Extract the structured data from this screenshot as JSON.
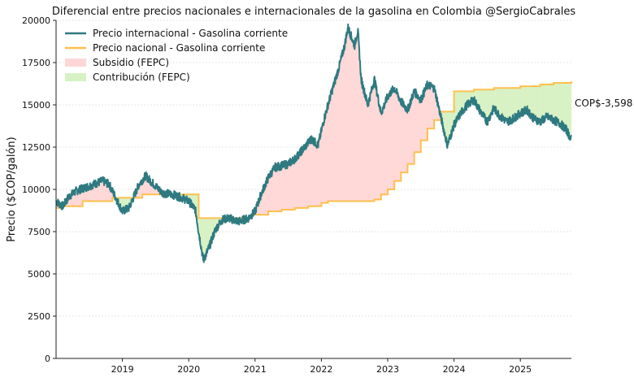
{
  "chart_data": {
    "type": "line",
    "title": "Diferencial entre precios nacionales e internacionales de la gasolina en Colombia @SergioCabrales",
    "xlabel": "",
    "ylabel": "Precio ($COP/galón)",
    "xlim": [
      2018.0,
      2025.77
    ],
    "ylim": [
      0,
      20000
    ],
    "xticks": [
      2019,
      2020,
      2021,
      2022,
      2023,
      2024,
      2025
    ],
    "xtick_labels": [
      "2019",
      "2020",
      "2021",
      "2022",
      "2023",
      "2024",
      "2025"
    ],
    "yticks": [
      0,
      2500,
      5000,
      7500,
      10000,
      12500,
      15000,
      17500,
      20000
    ],
    "ytick_labels": [
      "0",
      "2500",
      "5000",
      "7500",
      "10000",
      "12500",
      "15000",
      "17500",
      "20000"
    ],
    "grid": "horizontal dashed",
    "legend_position": "top-left",
    "legend": [
      "Precio internacional - Gasolina corriente",
      "Precio nacional - Gasolina corriente",
      "Subsidio (FEPC)",
      "Contribución (FEPC)"
    ],
    "colors": {
      "internacional": "#2e7a80",
      "nacional": "#ffc04d",
      "subsidio": "#ffd6d6",
      "contribucion": "#d6f2c4"
    },
    "annotation": "COP$-3,598",
    "series": [
      {
        "name": "Precio internacional - Gasolina corriente",
        "x": [
          2018.0,
          2018.1,
          2018.2,
          2018.3,
          2018.5,
          2018.7,
          2018.8,
          2018.9,
          2019.0,
          2019.1,
          2019.25,
          2019.35,
          2019.5,
          2019.6,
          2019.75,
          2019.9,
          2020.0,
          2020.1,
          2020.15,
          2020.22,
          2020.3,
          2020.4,
          2020.5,
          2020.6,
          2020.75,
          2020.9,
          2021.0,
          2021.1,
          2021.2,
          2021.3,
          2021.5,
          2021.6,
          2021.75,
          2021.85,
          2021.95,
          2022.05,
          2022.15,
          2022.25,
          2022.35,
          2022.4,
          2022.5,
          2022.55,
          2022.6,
          2022.7,
          2022.8,
          2022.9,
          2023.0,
          2023.1,
          2023.2,
          2023.3,
          2023.4,
          2023.5,
          2023.6,
          2023.7,
          2023.75,
          2023.8,
          2023.9,
          2024.0,
          2024.1,
          2024.2,
          2024.3,
          2024.4,
          2024.5,
          2024.6,
          2024.7,
          2024.8,
          2024.9,
          2025.0,
          2025.1,
          2025.2,
          2025.3,
          2025.4,
          2025.5,
          2025.6,
          2025.7,
          2025.77
        ],
        "values": [
          9300,
          9000,
          9600,
          9900,
          10200,
          10500,
          10300,
          9500,
          8700,
          8900,
          10300,
          10800,
          10200,
          9800,
          9700,
          9500,
          9300,
          8800,
          7500,
          5800,
          6500,
          7600,
          8200,
          8300,
          8100,
          8300,
          8700,
          9800,
          10700,
          11300,
          11500,
          11800,
          12500,
          13000,
          12600,
          14300,
          15700,
          17000,
          18500,
          19600,
          18500,
          19400,
          16500,
          15000,
          16500,
          14500,
          15500,
          16000,
          15200,
          14700,
          15800,
          15300,
          16200,
          16000,
          15200,
          14300,
          12600,
          13800,
          14500,
          15000,
          15300,
          14600,
          14000,
          14800,
          14300,
          14000,
          14200,
          14500,
          14700,
          14200,
          14000,
          14300,
          14100,
          13900,
          13500,
          12900
        ]
      },
      {
        "name": "Precio nacional - Gasolina corriente",
        "step": "post",
        "x": [
          2018.0,
          2018.1,
          2018.4,
          2018.85,
          2019.3,
          2020.15,
          2020.95,
          2021.2,
          2021.4,
          2021.6,
          2021.8,
          2022.0,
          2022.1,
          2022.8,
          2022.9,
          2023.0,
          2023.1,
          2023.2,
          2023.3,
          2023.4,
          2023.5,
          2023.6,
          2023.7,
          2023.8,
          2024.0,
          2024.3,
          2024.6,
          2025.0,
          2025.3,
          2025.5,
          2025.77
        ],
        "values": [
          8900,
          9000,
          9300,
          9500,
          9700,
          8300,
          8500,
          8700,
          8800,
          8900,
          9000,
          9200,
          9300,
          9400,
          9700,
          10000,
          10500,
          11000,
          11500,
          12200,
          12900,
          13600,
          14100,
          14600,
          15800,
          15900,
          16000,
          16100,
          16200,
          16300,
          16400
        ]
      }
    ]
  }
}
